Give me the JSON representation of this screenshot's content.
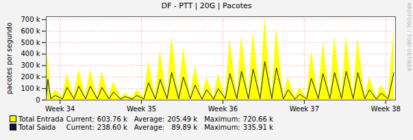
{
  "chart_data": {
    "type": "line",
    "title": "DF - PTT | 20G | Pacotes",
    "y_label": "pacotes por segundo",
    "watermark": "RRDTOOL / TOBI OETIKER",
    "x": [
      33.83,
      33.85,
      33.886,
      33.943,
      34.029,
      34.086,
      34.171,
      34.229,
      34.314,
      34.371,
      34.457,
      34.514,
      34.6,
      34.657,
      34.743,
      34.8,
      34.886,
      34.943,
      35.029,
      35.086,
      35.171,
      35.229,
      35.314,
      35.371,
      35.457,
      35.514,
      35.6,
      35.657,
      35.743,
      35.8,
      35.886,
      35.943,
      36.029,
      36.086,
      36.171,
      36.229,
      36.314,
      36.371,
      36.457,
      36.514,
      36.6,
      36.657,
      36.743,
      36.8,
      36.886,
      36.943,
      37.029,
      37.086,
      37.171,
      37.229,
      37.314,
      37.371,
      37.457,
      37.514,
      37.6,
      37.657,
      37.743,
      37.8,
      37.886,
      37.943,
      38.029,
      38.1
    ],
    "series": [
      {
        "name": "Total Entrada",
        "type": "area",
        "color": "#ffff00",
        "values": [
          40000,
          420000,
          30000,
          90000,
          25000,
          230000,
          25000,
          270000,
          25000,
          270000,
          25000,
          250000,
          25000,
          160000,
          20000,
          60000,
          20000,
          90000,
          25000,
          340000,
          25000,
          430000,
          30000,
          560000,
          30000,
          460000,
          30000,
          300000,
          20000,
          200000,
          20000,
          230000,
          30000,
          530000,
          30000,
          560000,
          30000,
          600000,
          30000,
          720660,
          30000,
          640000,
          25000,
          200000,
          20000,
          110000,
          25000,
          430000,
          30000,
          500000,
          30000,
          550000,
          30000,
          560000,
          30000,
          540000,
          25000,
          200000,
          20000,
          130000,
          30000,
          603760
        ],
        "current": {
          "value": 603760,
          "label": "603.76 k"
        },
        "average": {
          "value": 205490,
          "label": "205.49 k"
        },
        "maximum": {
          "value": 720660,
          "label": "720.66 k"
        }
      },
      {
        "name": "Total Saida",
        "type": "line",
        "color": "#0a1a3a",
        "values": [
          20000,
          180000,
          12000,
          40000,
          10000,
          110000,
          10000,
          120000,
          10000,
          120000,
          10000,
          110000,
          10000,
          70000,
          8000,
          30000,
          8000,
          40000,
          10000,
          150000,
          10000,
          180000,
          12000,
          240000,
          12000,
          200000,
          12000,
          130000,
          8000,
          90000,
          8000,
          100000,
          12000,
          230000,
          12000,
          250000,
          12000,
          270000,
          12000,
          335910,
          12000,
          280000,
          10000,
          90000,
          8000,
          50000,
          10000,
          190000,
          12000,
          230000,
          12000,
          240000,
          12000,
          250000,
          12000,
          240000,
          10000,
          90000,
          8000,
          60000,
          12000,
          238600
        ],
        "current": {
          "value": 238600,
          "label": "238.60 k"
        },
        "average": {
          "value": 89890,
          "label": "89.89 k"
        },
        "maximum": {
          "value": 335910,
          "label": "335.91 k"
        }
      }
    ],
    "stat_labels": [
      "Current:",
      "Average:",
      "Maximum:"
    ],
    "xlim": [
      33.83,
      38.12
    ],
    "xticks": [
      {
        "value": 34,
        "label": "Week 34"
      },
      {
        "value": 35,
        "label": "Week 35"
      },
      {
        "value": 36,
        "label": "Week 36"
      },
      {
        "value": 37,
        "label": "Week 37"
      },
      {
        "value": 38,
        "label": "Week 38"
      }
    ],
    "ylim": [
      0,
      725000
    ],
    "yticks": [
      0,
      {
        "value": 100000,
        "label": "100 k"
      },
      {
        "value": 200000,
        "label": "200 k"
      },
      {
        "value": 300000,
        "label": "300 k"
      },
      {
        "value": 400000,
        "label": "400 k"
      },
      {
        "value": 500000,
        "label": "500 k"
      },
      {
        "value": 600000,
        "label": "600 k"
      },
      {
        "value": 700000,
        "label": "700 k"
      }
    ],
    "grid": true,
    "legend": "bottom"
  }
}
